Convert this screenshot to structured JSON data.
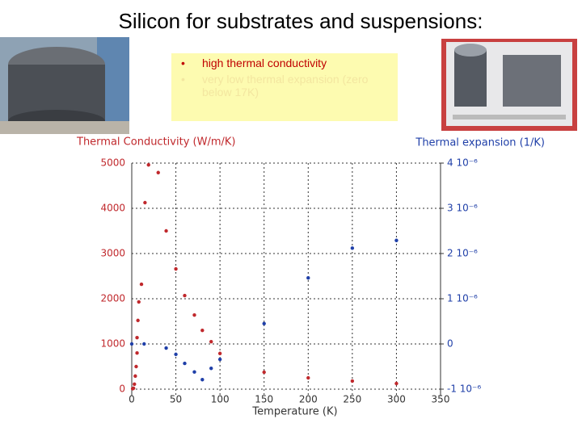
{
  "chart_data": {
    "type": "scatter",
    "title": "Silicon for substrates and suspensions:",
    "annotations": [
      "high thermal conductivity",
      "very low thermal expansion (zero below 17K)"
    ],
    "x_label": "Temperature (K)",
    "y_label": "Thermal Conductivity (W/m/K)",
    "y2_label": "Thermal expansion (1/K)",
    "xlim": [
      0,
      350
    ],
    "xticks": [
      0,
      50,
      100,
      150,
      200,
      250,
      300,
      350
    ],
    "ylim": [
      0,
      5000
    ],
    "yticks": [
      0,
      1000,
      2000,
      3000,
      4000,
      5000
    ],
    "y2lim": [
      -1e-06,
      4e-06
    ],
    "y2ticks": [
      {
        "value": -1e-06,
        "label": "-1 10⁻⁶"
      },
      0,
      {
        "value": 1e-06,
        "label": "1 10⁻⁶"
      },
      {
        "value": 2e-06,
        "label": "2 10⁻⁶"
      },
      {
        "value": 3e-06,
        "label": "3 10⁻⁶"
      },
      {
        "value": 4e-06,
        "label": "4 10⁻⁶"
      }
    ],
    "grid": true,
    "series": [
      {
        "color": "#c0282c",
        "x": [
          19,
          30,
          15,
          39,
          50,
          11,
          60,
          8,
          71,
          7,
          80,
          6,
          90,
          6,
          100,
          5,
          150,
          4,
          200,
          250,
          300,
          3,
          2,
          1
        ],
        "values": [
          4960,
          4790,
          4125,
          3500,
          2660,
          2320,
          2070,
          1930,
          1640,
          1520,
          1300,
          1140,
          1050,
          800,
          790,
          500,
          375,
          290,
          250,
          180,
          125,
          110,
          20,
          10
        ]
      },
      {
        "color": "#1f3fa8",
        "axis": "y2",
        "x": [
          0,
          14,
          39,
          50,
          60,
          71,
          80,
          90,
          100,
          150,
          200,
          250,
          300
        ],
        "values": [
          0,
          0,
          -9e-08,
          -2.3e-07,
          -4.3e-07,
          -6.2e-07,
          -7.9e-07,
          -5.4e-07,
          -3.4e-07,
          4.5e-07,
          1.46e-06,
          2.12e-06,
          2.29e-06
        ]
      }
    ]
  }
}
